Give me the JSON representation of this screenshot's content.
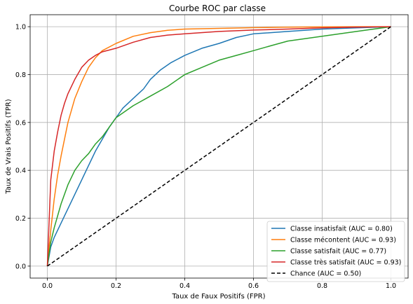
{
  "chart_data": {
    "type": "line",
    "title": "Courbe ROC par classe",
    "xlabel": "Taux de Faux Positifs (FPR)",
    "ylabel": "Taux de Vrais Positifs (TPR)",
    "xlim": [
      -0.05,
      1.05
    ],
    "ylim": [
      -0.05,
      1.05
    ],
    "xticks": [
      0.0,
      0.2,
      0.4,
      0.6,
      0.8,
      1.0
    ],
    "yticks": [
      0.0,
      0.2,
      0.4,
      0.6,
      0.8,
      1.0
    ],
    "xtick_labels": [
      "0.0",
      "0.2",
      "0.4",
      "0.6",
      "0.8",
      "1.0"
    ],
    "ytick_labels": [
      "0.0",
      "0.2",
      "0.4",
      "0.6",
      "0.8",
      "1.0"
    ],
    "grid": true,
    "legend_position": "bottom-right",
    "series": [
      {
        "name": "Classe insatisfait (AUC = 0.80)",
        "color": "#1f77b4",
        "x": [
          0,
          0.01,
          0.02,
          0.04,
          0.06,
          0.08,
          0.1,
          0.12,
          0.14,
          0.16,
          0.18,
          0.2,
          0.22,
          0.25,
          0.28,
          0.3,
          0.33,
          0.36,
          0.4,
          0.45,
          0.5,
          0.55,
          0.6,
          0.7,
          0.8,
          0.9,
          1.0
        ],
        "y": [
          0,
          0.08,
          0.12,
          0.18,
          0.24,
          0.3,
          0.36,
          0.42,
          0.48,
          0.53,
          0.58,
          0.62,
          0.66,
          0.7,
          0.74,
          0.78,
          0.82,
          0.85,
          0.88,
          0.91,
          0.93,
          0.955,
          0.97,
          0.98,
          0.99,
          0.995,
          1.0
        ]
      },
      {
        "name": "Classe mécontent (AUC = 0.93)",
        "color": "#ff7f0e",
        "x": [
          0,
          0.01,
          0.02,
          0.03,
          0.04,
          0.05,
          0.06,
          0.08,
          0.1,
          0.12,
          0.14,
          0.16,
          0.2,
          0.25,
          0.3,
          0.35,
          0.4,
          0.5,
          0.6,
          0.7,
          0.8,
          0.9,
          1.0
        ],
        "y": [
          0,
          0.15,
          0.28,
          0.38,
          0.46,
          0.53,
          0.6,
          0.7,
          0.77,
          0.83,
          0.87,
          0.9,
          0.93,
          0.96,
          0.975,
          0.985,
          0.99,
          0.993,
          0.996,
          0.998,
          0.999,
          1.0,
          1.0
        ]
      },
      {
        "name": "Classe satisfait (AUC = 0.77)",
        "color": "#2ca02c",
        "x": [
          0,
          0.01,
          0.02,
          0.04,
          0.06,
          0.08,
          0.1,
          0.12,
          0.14,
          0.16,
          0.18,
          0.2,
          0.25,
          0.3,
          0.35,
          0.4,
          0.45,
          0.5,
          0.55,
          0.6,
          0.65,
          0.7,
          0.8,
          0.9,
          0.95,
          1.0
        ],
        "y": [
          0,
          0.1,
          0.16,
          0.26,
          0.34,
          0.4,
          0.44,
          0.47,
          0.51,
          0.54,
          0.58,
          0.62,
          0.67,
          0.71,
          0.75,
          0.8,
          0.83,
          0.86,
          0.88,
          0.9,
          0.92,
          0.94,
          0.96,
          0.98,
          0.99,
          1.0
        ]
      },
      {
        "name": "Classe très satisfait (AUC = 0.93)",
        "color": "#d62728",
        "x": [
          0,
          0.01,
          0.02,
          0.03,
          0.04,
          0.05,
          0.06,
          0.08,
          0.1,
          0.12,
          0.14,
          0.16,
          0.2,
          0.25,
          0.3,
          0.35,
          0.4,
          0.5,
          0.6,
          0.7,
          0.8,
          0.9,
          1.0
        ],
        "y": [
          0,
          0.36,
          0.48,
          0.56,
          0.63,
          0.68,
          0.72,
          0.78,
          0.83,
          0.86,
          0.88,
          0.895,
          0.91,
          0.935,
          0.955,
          0.965,
          0.97,
          0.98,
          0.986,
          0.99,
          0.995,
          0.998,
          1.0
        ]
      },
      {
        "name": "Chance (AUC = 0.50)",
        "color": "#000000",
        "dashed": true,
        "x": [
          0,
          1
        ],
        "y": [
          0,
          1
        ]
      }
    ]
  }
}
